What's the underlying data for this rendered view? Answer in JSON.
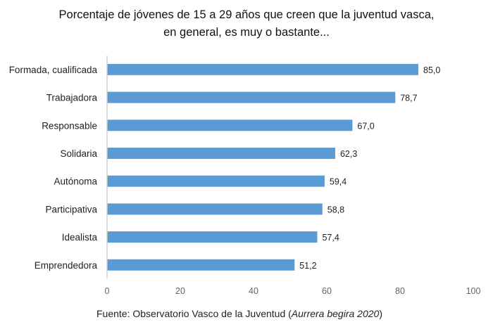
{
  "chart_data": {
    "type": "bar",
    "orientation": "horizontal",
    "title_line1": "Porcentaje de jóvenes de 15 a 29 años que creen que la juventud vasca,",
    "title_line2": "en general, es muy o bastante...",
    "categories": [
      "Formada, cualificada",
      "Trabajadora",
      "Responsable",
      "Solidaria",
      "Autónoma",
      "Participativa",
      "Idealista",
      "Emprendedora"
    ],
    "values": [
      85.0,
      78.7,
      67.0,
      62.3,
      59.4,
      58.8,
      57.4,
      51.2
    ],
    "data_labels": [
      "85,0",
      "78,7",
      "67,0",
      "62,3",
      "59,4",
      "58,8",
      "57,4",
      "51,2"
    ],
    "xlim": [
      0,
      100
    ],
    "x_ticks": [
      0,
      20,
      40,
      60,
      80,
      100
    ],
    "grid": false,
    "bar_color": "#5b9bd5",
    "source": "Fuente: Observatorio Vasco de la Juventud (",
    "source_italic": "Aurrera begira 2020",
    "source_end": ")"
  }
}
